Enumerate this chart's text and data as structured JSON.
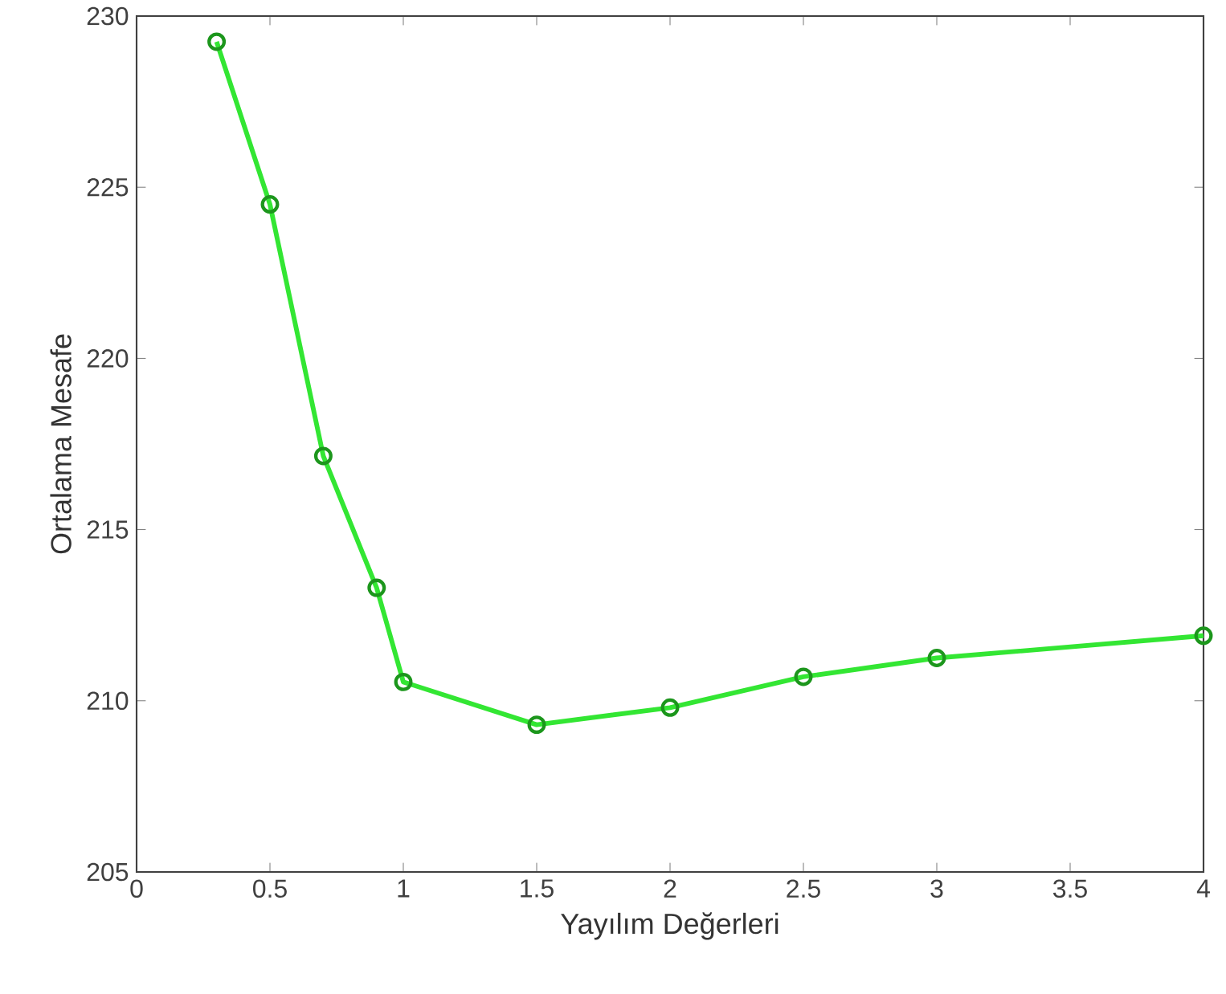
{
  "chart_data": {
    "type": "line",
    "xlabel": "Yayılım Değerleri",
    "ylabel": "Ortalama Mesafe",
    "x": [
      0.3,
      0.5,
      0.7,
      0.9,
      1.0,
      1.5,
      2.0,
      2.5,
      3.0,
      4.0
    ],
    "series": [
      {
        "color": "#33e633",
        "values": [
          229.25,
          224.5,
          217.15,
          213.3,
          210.55,
          209.3,
          209.8,
          210.7,
          211.25,
          211.9
        ]
      }
    ],
    "xlim": [
      0,
      4
    ],
    "ylim": [
      205,
      230
    ],
    "xticks": [
      0,
      0.5,
      1,
      1.5,
      2,
      2.5,
      3,
      3.5,
      4
    ],
    "yticks": [
      205,
      210,
      215,
      220,
      225,
      230
    ],
    "marker": "circle",
    "line_style": "solid"
  }
}
